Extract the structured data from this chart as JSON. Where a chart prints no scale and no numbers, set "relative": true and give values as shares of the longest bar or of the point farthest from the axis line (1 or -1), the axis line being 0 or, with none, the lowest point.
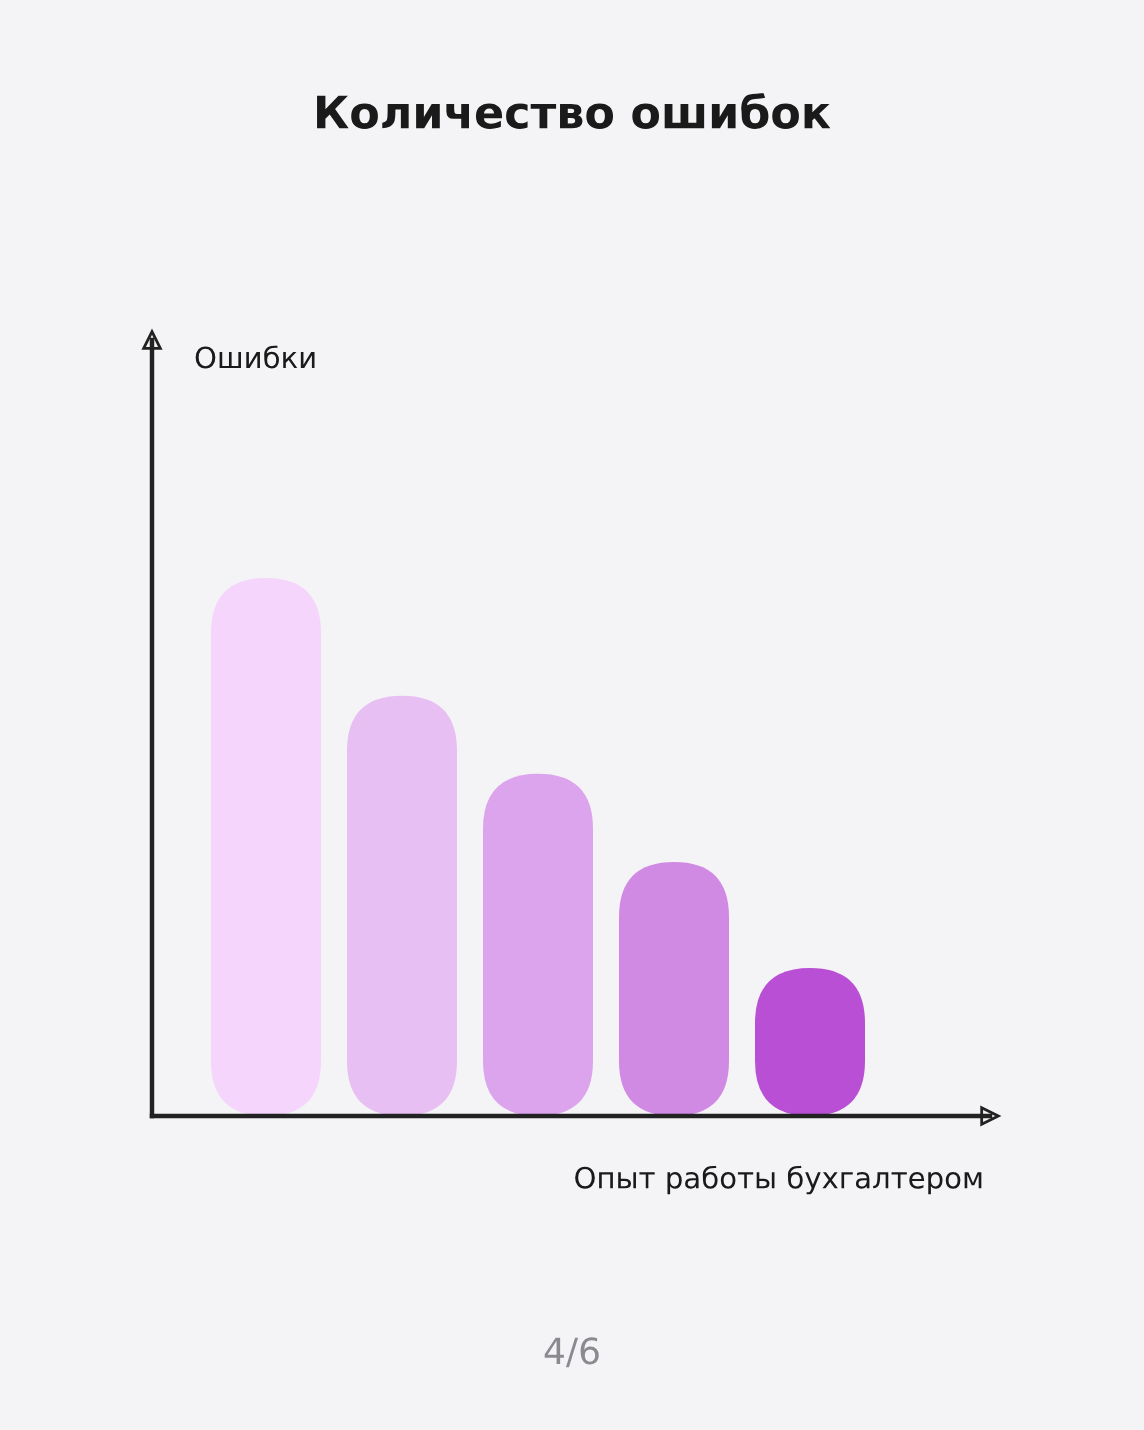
{
  "chart_data": {
    "type": "bar",
    "title": "Количество ошибок",
    "xlabel": "Опыт работы бухгалтером",
    "relative": true,
    "categories": [
      null,
      null,
      null,
      null,
      null
    ],
    "values": [
      1,
      0.781,
      0.636,
      0.472,
      0.275
    ],
    "colors": [
      "#f5d5fb",
      "#e8bff3",
      "#dca4ec",
      "#d08ae3",
      "#b94fd4"
    ],
    "annotations": [
      "Ошибки",
      "4/6"
    ]
  }
}
